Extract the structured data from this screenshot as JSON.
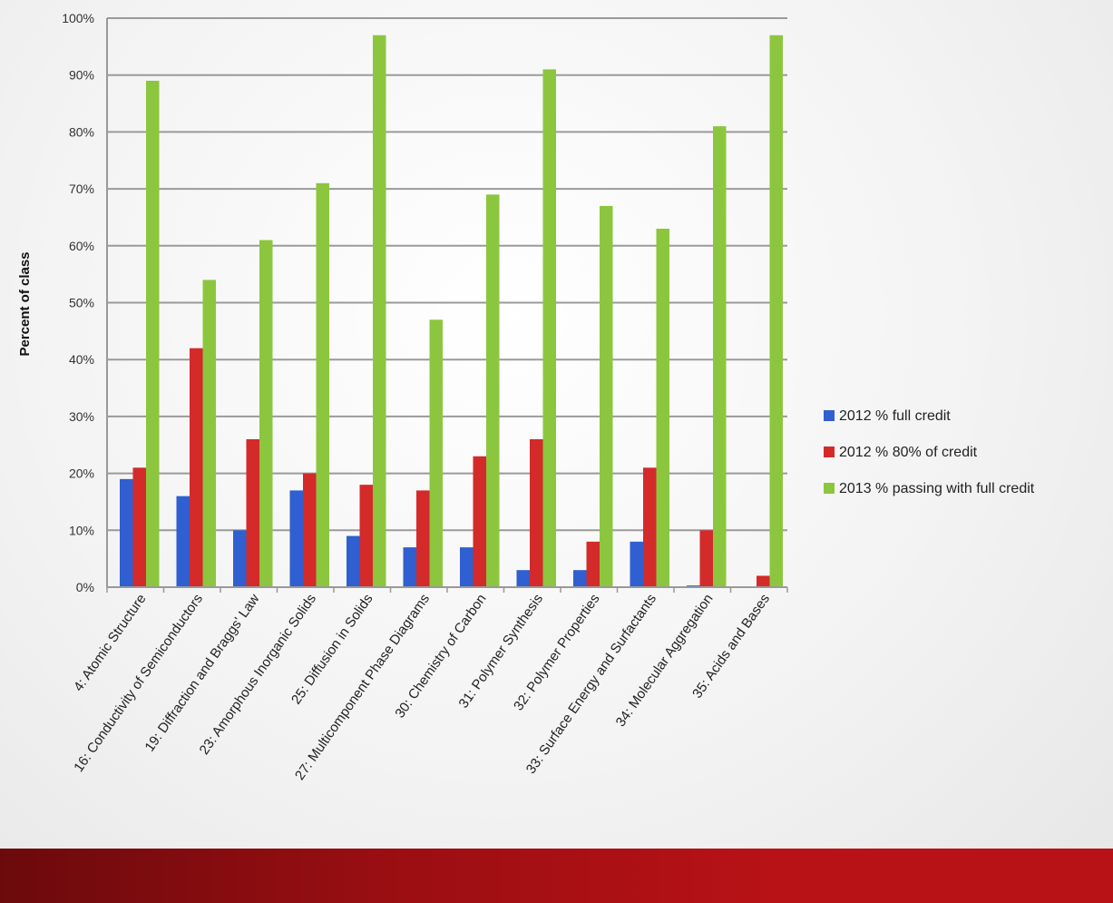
{
  "chart_data": {
    "type": "bar",
    "title": "",
    "xlabel": "",
    "ylabel": "Percent of class",
    "ylim": [
      0,
      100
    ],
    "yticks": [
      "0%",
      "10%",
      "20%",
      "30%",
      "40%",
      "50%",
      "60%",
      "70%",
      "80%",
      "90%",
      "100%"
    ],
    "grid": true,
    "legend_position": "right",
    "categories": [
      "4: Atomic Structure",
      "16: Conductivity of Semiconductors",
      "19: Diffraction and Braggs' Law",
      "23: Amorphous Inorganic Solids",
      "25: Diffusion in Solids",
      "27: Multicomponent Phase Diagrams",
      "30: Chemistry of Carbon",
      "31: Polymer Synthesis",
      "32: Polymer Properties",
      "33: Surface Energy and Surfactants",
      "34: Molecular Aggregation",
      "35: Acids and Bases"
    ],
    "series": [
      {
        "name": "2012 % full credit",
        "color": "#2f5fd0",
        "values": [
          19,
          16,
          10,
          17,
          9,
          7,
          7,
          3,
          3,
          8,
          0.3,
          0
        ]
      },
      {
        "name": "2012 % 80% of credit",
        "color": "#d42a2a",
        "values": [
          21,
          42,
          26,
          20,
          18,
          17,
          23,
          26,
          8,
          21,
          10,
          2
        ]
      },
      {
        "name": "2013 % passing with full credit",
        "color": "#8cc63e",
        "values": [
          89,
          54,
          61,
          71,
          97,
          47,
          69,
          91,
          67,
          63,
          81,
          97
        ]
      }
    ]
  }
}
